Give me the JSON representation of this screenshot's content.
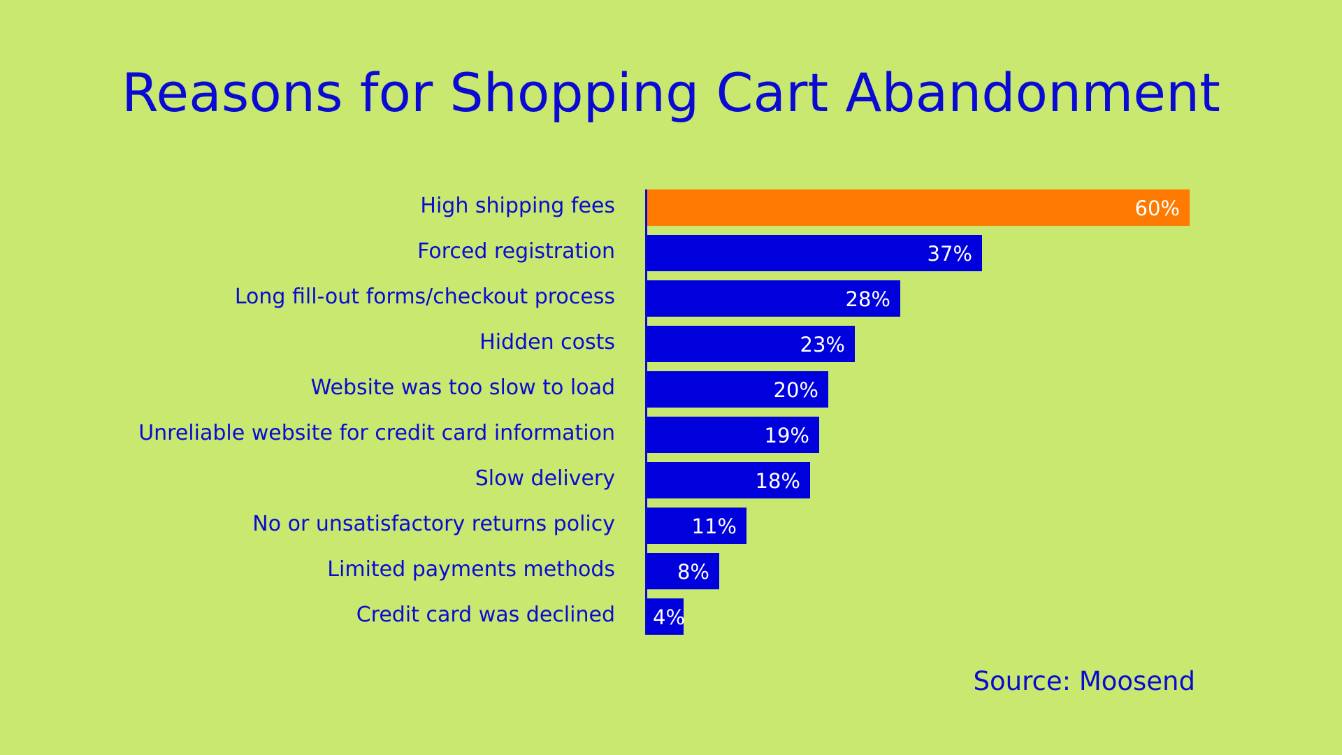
{
  "title": "Reasons for Shopping Cart Abandonment",
  "source": "Source: Moosend",
  "colors": {
    "background": "#c8e870",
    "text": "#0a0ad2",
    "bar": "#0000dc",
    "highlight_bar": "#ff7a00",
    "bar_label": "#ffffff"
  },
  "rows": [
    {
      "label": "High shipping fees",
      "value": 60,
      "display": "60%",
      "highlight": true
    },
    {
      "label": "Forced registration",
      "value": 37,
      "display": "37%",
      "highlight": false
    },
    {
      "label": "Long fill-out forms/checkout process",
      "value": 28,
      "display": "28%",
      "highlight": false
    },
    {
      "label": "Hidden costs",
      "value": 23,
      "display": "23%",
      "highlight": false
    },
    {
      "label": "Website was too slow to load",
      "value": 20,
      "display": "20%",
      "highlight": false
    },
    {
      "label": "Unreliable website for credit card information",
      "value": 19,
      "display": "19%",
      "highlight": false
    },
    {
      "label": "Slow delivery",
      "value": 18,
      "display": "18%",
      "highlight": false
    },
    {
      "label": "No or unsatisfactory returns policy",
      "value": 11,
      "display": "11%",
      "highlight": false
    },
    {
      "label": "Limited payments methods",
      "value": 8,
      "display": "8%",
      "highlight": false
    },
    {
      "label": "Credit card was declined",
      "value": 4,
      "display": "4%",
      "highlight": false
    }
  ],
  "chart_data": {
    "type": "bar",
    "orientation": "horizontal",
    "title": "Reasons for Shopping Cart Abandonment",
    "categories": [
      "High shipping fees",
      "Forced registration",
      "Long fill-out forms/checkout process",
      "Hidden costs",
      "Website was too slow to load",
      "Unreliable website for credit card information",
      "Slow delivery",
      "No or unsatisfactory returns policy",
      "Limited payments methods",
      "Credit card was declined"
    ],
    "values": [
      60,
      37,
      28,
      23,
      20,
      19,
      18,
      11,
      8,
      4
    ],
    "value_labels": [
      "60%",
      "37%",
      "28%",
      "23%",
      "20%",
      "19%",
      "18%",
      "11%",
      "8%",
      "4%"
    ],
    "unit": "%",
    "xlabel": "",
    "ylabel": "",
    "xlim": [
      0,
      60
    ],
    "grid": false,
    "legend": null,
    "highlighted_category": "High shipping fees",
    "annotations": [
      "Source: Moosend"
    ]
  }
}
